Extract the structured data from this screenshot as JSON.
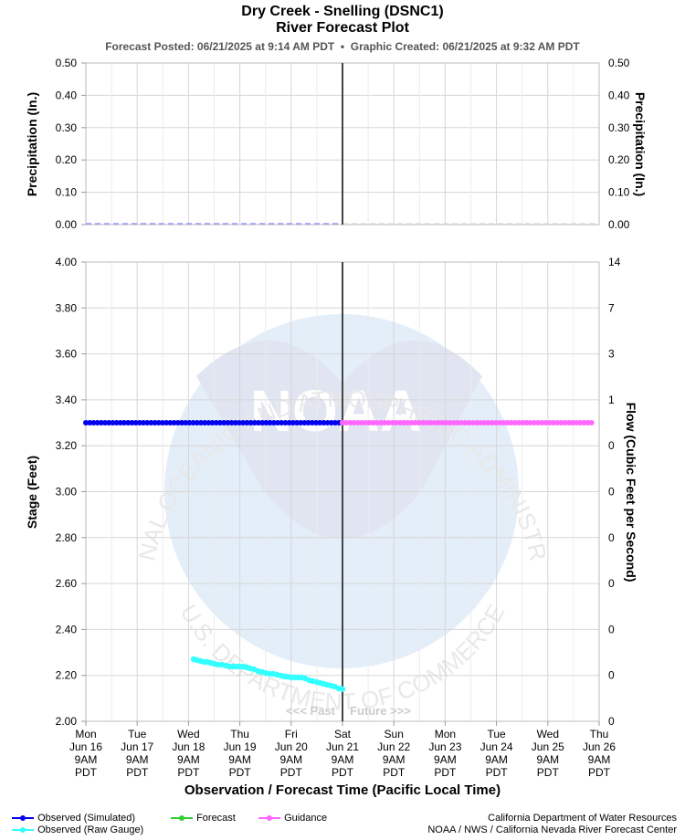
{
  "header": {
    "title": "Dry Creek - Snelling (DSNC1)",
    "subtitle": "River Forecast Plot",
    "forecast_posted": "Forecast Posted: 06/21/2025 at 9:14 AM PDT",
    "separator": "•",
    "graphic_created": "Graphic Created: 06/21/2025 at 9:32 AM PDT"
  },
  "watermark": {
    "ring_text": "NATIONAL OCEANIC AND ATMOSPHERIC ADMINISTRATION",
    "bottom_text": "U.S. DEPARTMENT OF COMMERCE",
    "center_text": "NOAA"
  },
  "past_future": {
    "past": "<<< Past",
    "future": "Future >>>"
  },
  "legend": {
    "observed_simulated": "Observed (Simulated)",
    "observed_raw": "Observed (Raw Gauge)",
    "forecast": "Forecast",
    "guidance": "Guidance"
  },
  "credits": {
    "line1": "California Department of Water Resources",
    "line2": "NOAA / NWS / California Nevada River Forecast Center"
  },
  "colors": {
    "observed_simulated": "#0000ee",
    "observed_raw": "#33ffff",
    "forecast": "#33cc33",
    "guidance": "#ff66ff",
    "precip": "#9999ff"
  },
  "chart_data": [
    {
      "type": "line",
      "panel": "precipitation",
      "ylabel": "Precipitation (In.)",
      "y2label": "Precipitation (In.)",
      "ylim": [
        0,
        0.5
      ],
      "yticks": [
        "0.00",
        "0.10",
        "0.20",
        "0.30",
        "0.40",
        "0.50"
      ],
      "grid": true,
      "series": [
        {
          "values_observed": [
            0,
            0,
            0,
            0,
            0,
            0,
            0,
            0,
            0,
            0,
            0,
            0,
            0,
            0,
            0,
            0,
            0,
            0,
            0,
            0
          ]
        }
      ]
    },
    {
      "type": "line",
      "panel": "stage",
      "ylabel": "Stage (Feet)",
      "y2label": "Flow (Cubic Feet per Second)",
      "xlabel": "Observation / Forecast Time (Pacific Local Time)",
      "ylim": [
        2.0,
        4.0
      ],
      "yticks": [
        "2.00",
        "2.20",
        "2.40",
        "2.60",
        "2.80",
        "3.00",
        "3.20",
        "3.40",
        "3.60",
        "3.80",
        "4.00"
      ],
      "y2ticks": [
        "0",
        "0",
        "0",
        "0",
        "0",
        "0",
        "0",
        "1",
        "3",
        "7",
        "14"
      ],
      "grid": true,
      "x_ticks": [
        [
          "Mon",
          "Jun 16",
          "9AM",
          "PDT"
        ],
        [
          "Tue",
          "Jun 17",
          "9AM",
          "PDT"
        ],
        [
          "Wed",
          "Jun 18",
          "9AM",
          "PDT"
        ],
        [
          "Thu",
          "Jun 19",
          "9AM",
          "PDT"
        ],
        [
          "Fri",
          "Jun 20",
          "9AM",
          "PDT"
        ],
        [
          "Sat",
          "Jun 21",
          "9AM",
          "PDT"
        ],
        [
          "Sun",
          "Jun 22",
          "9AM",
          "PDT"
        ],
        [
          "Mon",
          "Jun 23",
          "9AM",
          "PDT"
        ],
        [
          "Tue",
          "Jun 24",
          "9AM",
          "PDT"
        ],
        [
          "Wed",
          "Jun 25",
          "9AM",
          "PDT"
        ],
        [
          "Thu",
          "Jun 26",
          "9AM",
          "PDT"
        ]
      ],
      "now_x_day": 5,
      "series": [
        {
          "name": "Observed (Simulated)",
          "x_days": [
            0,
            5
          ],
          "values": [
            3.3,
            3.3
          ]
        },
        {
          "name": "Guidance",
          "x_days": [
            5,
            9.85
          ],
          "values": [
            3.3,
            3.3
          ]
        },
        {
          "name": "Observed (Raw Gauge)",
          "x_days": [
            2.1,
            2.3,
            2.5,
            2.8,
            3.0,
            3.2,
            3.5,
            3.8,
            4.0,
            4.2,
            4.5,
            4.7,
            5.0
          ],
          "values": [
            2.27,
            2.26,
            2.25,
            2.24,
            2.24,
            2.23,
            2.21,
            2.2,
            2.19,
            2.19,
            2.17,
            2.16,
            2.14
          ]
        }
      ]
    }
  ]
}
